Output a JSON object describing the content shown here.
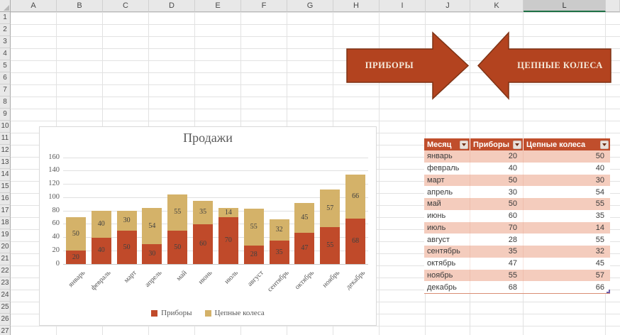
{
  "spreadsheet": {
    "column_headers": [
      "A",
      "B",
      "C",
      "D",
      "E",
      "F",
      "G",
      "H",
      "I",
      "J",
      "K",
      "L",
      ""
    ],
    "selected_column": "L",
    "row_headers": [
      "1",
      "2",
      "3",
      "4",
      "5",
      "6",
      "7",
      "8",
      "9",
      "10",
      "11",
      "12",
      "13",
      "14",
      "15",
      "16",
      "17",
      "18",
      "19",
      "20",
      "21",
      "22",
      "23",
      "24",
      "25",
      "26",
      "27"
    ]
  },
  "arrows": {
    "fill": "#B3431F",
    "border_color": "#7E3315",
    "text_color": "#F5EBDC",
    "left": {
      "label": "ПРИБОРЫ"
    },
    "right": {
      "label": "ЦЕПНЫЕ КОЛЕСА"
    }
  },
  "table": {
    "columns": [
      "Месяц",
      "Приборы",
      "Цепные колеса"
    ],
    "rows": [
      [
        "январь",
        "20",
        "50"
      ],
      [
        "февраль",
        "40",
        "40"
      ],
      [
        "март",
        "50",
        "30"
      ],
      [
        "апрель",
        "30",
        "54"
      ],
      [
        "май",
        "50",
        "55"
      ],
      [
        "июнь",
        "60",
        "35"
      ],
      [
        "июль",
        "70",
        "14"
      ],
      [
        "август",
        "28",
        "55"
      ],
      [
        "сентябрь",
        "35",
        "32"
      ],
      [
        "октябрь",
        "47",
        "45"
      ],
      [
        "ноябрь",
        "55",
        "57"
      ],
      [
        "декабрь",
        "68",
        "66"
      ]
    ],
    "header_bg": "#C04E2C",
    "header_text_color": "#FFFFFF",
    "stripe_bg": "#F4CCBD"
  },
  "chart_data": {
    "type": "bar",
    "stacked": true,
    "title": "Продажи",
    "categories": [
      "январь",
      "февраль",
      "март",
      "апрель",
      "май",
      "июнь",
      "июль",
      "август",
      "сентябрь",
      "октябрь",
      "ноябрь",
      "декабрь"
    ],
    "series": [
      {
        "name": "Приборы",
        "color": "#C04A2A",
        "values": [
          20,
          40,
          50,
          30,
          50,
          60,
          70,
          28,
          35,
          47,
          55,
          68
        ]
      },
      {
        "name": "Цепные колеса",
        "color": "#D4B269",
        "values": [
          50,
          40,
          30,
          54,
          55,
          35,
          14,
          55,
          32,
          45,
          57,
          66
        ]
      }
    ],
    "xlabel": "",
    "ylabel": "",
    "ylim": [
      0,
      160
    ],
    "ytick_step": 20,
    "grid": true,
    "legend_position": "bottom",
    "show_data_labels": true
  }
}
